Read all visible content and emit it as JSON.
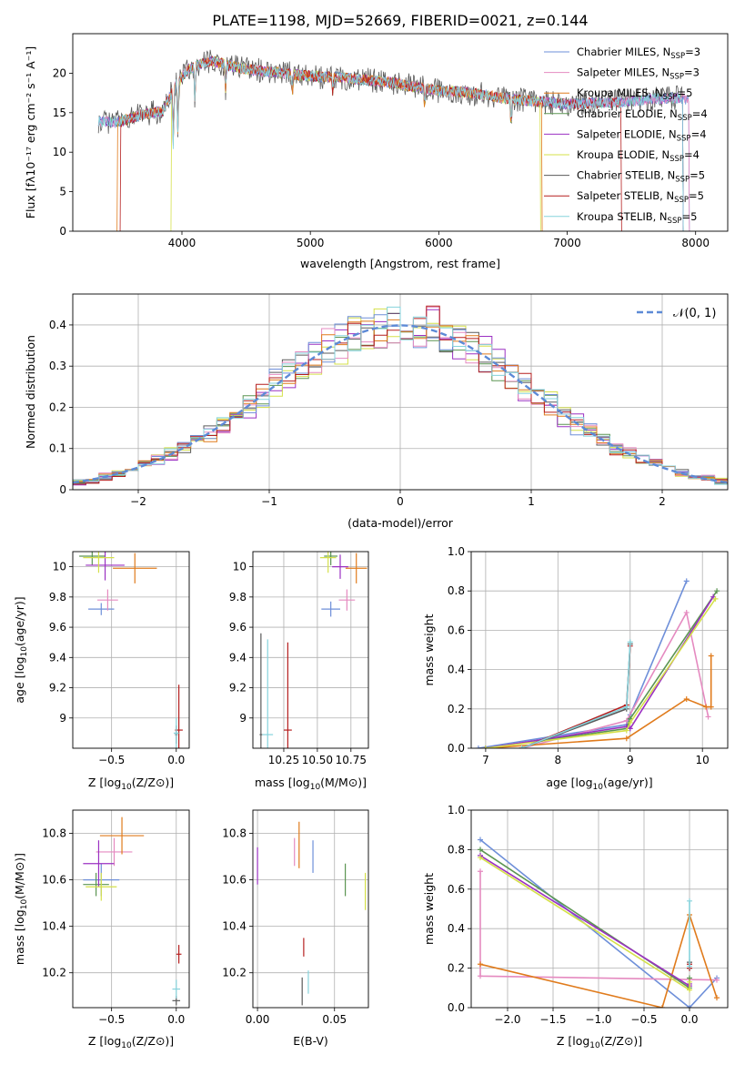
{
  "title": "PLATE=1198, MJD=52669, FIBERID=0021, z=0.144",
  "legend": {
    "entries": [
      {
        "text": "Chabrier MILES, N",
        "sub": "SSP",
        "tail": "=3",
        "color": "#6e8fd9"
      },
      {
        "text": "Salpeter MILES, N",
        "sub": "SSP",
        "tail": "=3",
        "color": "#e58ac0"
      },
      {
        "text": "Kroupa MILES, N",
        "sub": "SSP",
        "tail": "=5",
        "color": "#e07b1c"
      },
      {
        "text": "Chabrier ELODIE, N",
        "sub": "SSP",
        "tail": "=4",
        "color": "#5c9552"
      },
      {
        "text": "Salpeter ELODIE, N",
        "sub": "SSP",
        "tail": "=4",
        "color": "#9b30c2"
      },
      {
        "text": "Kroupa ELODIE, N",
        "sub": "SSP",
        "tail": "=4",
        "color": "#d5e04a"
      },
      {
        "text": "Chabrier STELIB, N",
        "sub": "SSP",
        "tail": "=5",
        "color": "#5a5a5a"
      },
      {
        "text": "Salpeter STELIB, N",
        "sub": "SSP",
        "tail": "=5",
        "color": "#b51f1f"
      },
      {
        "text": "Kroupa STELIB, N",
        "sub": "SSP",
        "tail": "=5",
        "color": "#86d3dc"
      }
    ]
  },
  "chart_data": [
    {
      "id": "spectrum",
      "type": "line",
      "xlabel": "wavelength [Angstrom, rest frame]",
      "ylabel": "Flux [fλ10⁻¹⁷ erg cm⁻² s⁻¹ A⁻¹]",
      "xlim": [
        3150,
        8250
      ],
      "ylim": [
        0,
        25
      ],
      "xticks": [
        4000,
        5000,
        6000,
        7000,
        8000
      ],
      "yticks": [
        0,
        5,
        10,
        15,
        20
      ],
      "grid": false,
      "series": [
        {
          "x": [
            3350,
            3500,
            3700,
            3850,
            3950,
            4050,
            4150,
            4250,
            4400,
            4600,
            4800,
            5000,
            5200,
            5400,
            5600,
            5800,
            6000,
            6200,
            6400,
            6600,
            6800,
            7000,
            7200,
            7400,
            7600,
            7800,
            8000
          ],
          "y": [
            14,
            13.8,
            14.8,
            15.2,
            18.5,
            20.5,
            21.2,
            21.5,
            20.8,
            20.3,
            20,
            19.6,
            19.5,
            19.2,
            18.9,
            18.3,
            17.8,
            17.6,
            17.1,
            16.6,
            16.4,
            16.1,
            16.2,
            16.3,
            16.6,
            16.9,
            16.6
          ]
        }
      ]
    },
    {
      "id": "residuals",
      "type": "bar",
      "xlabel": "(data-model)/error",
      "ylabel": "Normed distribution",
      "xlim": [
        -2.5,
        2.5
      ],
      "ylim": [
        0,
        0.475
      ],
      "xticks": [
        -2,
        -1,
        0,
        1,
        2
      ],
      "yticks": [
        0.0,
        0.1,
        0.2,
        0.3,
        0.4
      ],
      "grid": true,
      "legend_position": "top-right",
      "curve": {
        "name": "𝒩(0, 1)",
        "mu": 0,
        "sigma": 1,
        "color": "#5d8ad6"
      },
      "bin_width": 0.1,
      "bin_start": -2.5
    },
    {
      "id": "age-vs-Z",
      "type": "scatter",
      "xlabel": "Z [log10(Z/Z⊙)]",
      "ylabel": "age  [log10(age/yr)]",
      "xlim": [
        -0.8,
        0.1
      ],
      "ylim": [
        8.8,
        10.1
      ],
      "xticks": [
        -0.5,
        0.0
      ],
      "yticks": [
        9.0,
        9.2,
        9.4,
        9.6,
        9.8,
        10.0
      ],
      "grid": true,
      "points": [
        {
          "c": 0,
          "x": -0.58,
          "y": 9.72,
          "xe": 0.1,
          "ye": 0.04
        },
        {
          "c": 1,
          "x": -0.53,
          "y": 9.78,
          "xe": 0.08,
          "ye": 0.07
        },
        {
          "c": 2,
          "x": -0.32,
          "y": 9.99,
          "xe": 0.17,
          "ye": 0.1
        },
        {
          "c": 3,
          "x": -0.65,
          "y": 10.07,
          "xe": 0.1,
          "ye": 0.06
        },
        {
          "c": 4,
          "x": -0.55,
          "y": 10.01,
          "xe": 0.15,
          "ye": 0.1
        },
        {
          "c": 5,
          "x": -0.6,
          "y": 10.06,
          "xe": 0.12,
          "ye": 0.1
        },
        {
          "c": 6,
          "x": 0.0,
          "y": 8.89,
          "xe": 0.01,
          "ye": 0.06
        },
        {
          "c": 7,
          "x": 0.02,
          "y": 8.92,
          "xe": 0.03,
          "ye": 0.3
        },
        {
          "c": 8,
          "x": 0.0,
          "y": 8.9,
          "xe": 0.02,
          "ye": 0.1
        }
      ]
    },
    {
      "id": "age-vs-mass",
      "type": "scatter",
      "xlabel": "mass [log10(M/M⊙)]",
      "ylabel": "",
      "xlim": [
        10.02,
        10.88
      ],
      "ylim": [
        8.8,
        10.1
      ],
      "xticks": [
        10.25,
        10.5,
        10.75
      ],
      "yticks": [
        9.0,
        9.2,
        9.4,
        9.6,
        9.8,
        10.0
      ],
      "grid": true,
      "points": [
        {
          "c": 0,
          "x": 10.6,
          "y": 9.72,
          "xe": 0.07,
          "ye": 0.05
        },
        {
          "c": 1,
          "x": 10.72,
          "y": 9.78,
          "xe": 0.06,
          "ye": 0.07
        },
        {
          "c": 2,
          "x": 10.79,
          "y": 9.99,
          "xe": 0.08,
          "ye": 0.1
        },
        {
          "c": 3,
          "x": 10.6,
          "y": 10.07,
          "xe": 0.05,
          "ye": 0.06
        },
        {
          "c": 4,
          "x": 10.67,
          "y": 10.0,
          "xe": 0.06,
          "ye": 0.08
        },
        {
          "c": 5,
          "x": 10.58,
          "y": 10.06,
          "xe": 0.06,
          "ye": 0.1
        },
        {
          "c": 6,
          "x": 10.08,
          "y": 8.89,
          "xe": 0.01,
          "ye": 0.67
        },
        {
          "c": 7,
          "x": 10.28,
          "y": 8.92,
          "xe": 0.03,
          "ye": 0.58
        },
        {
          "c": 8,
          "x": 10.13,
          "y": 8.89,
          "xe": 0.04,
          "ye": 0.63
        }
      ]
    },
    {
      "id": "mass-weight-vs-age",
      "type": "line",
      "xlabel": "age  [log10(age/yr)]",
      "ylabel": "mass weight",
      "xlim": [
        6.8,
        10.35
      ],
      "ylim": [
        0,
        1
      ],
      "xticks": [
        7,
        8,
        9,
        10
      ],
      "yticks": [
        0.0,
        0.2,
        0.4,
        0.6,
        0.8,
        1.0
      ],
      "grid": true,
      "series": [
        {
          "c": 0,
          "x": [
            6.9,
            8.95,
            9.0,
            9.78
          ],
          "y": [
            0.0,
            0.12,
            0.17,
            0.85
          ]
        },
        {
          "c": 1,
          "x": [
            7.5,
            8.95,
            9.78,
            10.08
          ],
          "y": [
            0.0,
            0.14,
            0.69,
            0.16
          ]
        },
        {
          "c": 2,
          "x": [
            7.0,
            8.95,
            9.78,
            10.05,
            10.12,
            10.12
          ],
          "y": [
            0.0,
            0.05,
            0.25,
            0.21,
            0.21,
            0.47
          ]
        },
        {
          "c": 3,
          "x": [
            7.0,
            8.95,
            9.0,
            10.2
          ],
          "y": [
            0.0,
            0.1,
            0.15,
            0.8
          ]
        },
        {
          "c": 4,
          "x": [
            7.0,
            8.95,
            9.0,
            10.15
          ],
          "y": [
            0.0,
            0.11,
            0.1,
            0.77
          ]
        },
        {
          "c": 5,
          "x": [
            7.0,
            8.95,
            9.0,
            10.18
          ],
          "y": [
            0.0,
            0.09,
            0.13,
            0.76
          ]
        },
        {
          "c": 6,
          "x": [
            7.5,
            8.95,
            9.0
          ],
          "y": [
            0.0,
            0.2,
            0.53
          ]
        },
        {
          "c": 7,
          "x": [
            7.5,
            8.95,
            9.0
          ],
          "y": [
            0.0,
            0.22,
            0.52
          ]
        },
        {
          "c": 8,
          "x": [
            7.5,
            8.95,
            9.0
          ],
          "y": [
            0.0,
            0.21,
            0.54
          ]
        }
      ]
    },
    {
      "id": "mass-vs-Z",
      "type": "scatter",
      "xlabel": "Z [log10(Z/Z⊙)]",
      "ylabel": "mass [log10(M/M⊙)]",
      "xlim": [
        -0.8,
        0.1
      ],
      "ylim": [
        10.05,
        10.9
      ],
      "xticks": [
        -0.5,
        0.0
      ],
      "yticks": [
        10.2,
        10.4,
        10.6,
        10.8
      ],
      "grid": true,
      "points": [
        {
          "c": 0,
          "x": -0.58,
          "y": 10.6,
          "xe": 0.14,
          "ye": 0.07
        },
        {
          "c": 1,
          "x": -0.48,
          "y": 10.72,
          "xe": 0.14,
          "ye": 0.06
        },
        {
          "c": 2,
          "x": -0.42,
          "y": 10.79,
          "xe": 0.17,
          "ye": 0.08
        },
        {
          "c": 3,
          "x": -0.62,
          "y": 10.58,
          "xe": 0.1,
          "ye": 0.05
        },
        {
          "c": 4,
          "x": -0.6,
          "y": 10.67,
          "xe": 0.12,
          "ye": 0.1
        },
        {
          "c": 5,
          "x": -0.58,
          "y": 10.57,
          "xe": 0.12,
          "ye": 0.06
        },
        {
          "c": 6,
          "x": 0.0,
          "y": 10.08,
          "xe": 0.03,
          "ye": 0.02
        },
        {
          "c": 7,
          "x": 0.02,
          "y": 10.28,
          "xe": 0.02,
          "ye": 0.04
        },
        {
          "c": 8,
          "x": 0.0,
          "y": 10.13,
          "xe": 0.03,
          "ye": 0.04
        }
      ]
    },
    {
      "id": "mass-vs-EBV",
      "type": "scatter",
      "xlabel": "E(B-V)",
      "ylabel": "",
      "xlim": [
        -0.003,
        0.072
      ],
      "ylim": [
        10.05,
        10.9
      ],
      "xticks": [
        0.0,
        0.05
      ],
      "yticks": [
        10.2,
        10.4,
        10.6,
        10.8
      ],
      "grid": true,
      "points": [
        {
          "c": 0,
          "x": 0.036,
          "y": 10.7,
          "xe": 0,
          "ye": 0.07
        },
        {
          "c": 1,
          "x": 0.024,
          "y": 10.72,
          "xe": 0,
          "ye": 0.06
        },
        {
          "c": 2,
          "x": 0.027,
          "y": 10.75,
          "xe": 0,
          "ye": 0.1
        },
        {
          "c": 3,
          "x": 0.057,
          "y": 10.6,
          "xe": 0,
          "ye": 0.07
        },
        {
          "c": 4,
          "x": 0.0,
          "y": 10.66,
          "xe": 0,
          "ye": 0.08
        },
        {
          "c": 5,
          "x": 0.07,
          "y": 10.55,
          "xe": 0,
          "ye": 0.08
        },
        {
          "c": 6,
          "x": 0.029,
          "y": 10.12,
          "xe": 0,
          "ye": 0.06
        },
        {
          "c": 7,
          "x": 0.03,
          "y": 10.31,
          "xe": 0,
          "ye": 0.04
        },
        {
          "c": 8,
          "x": 0.033,
          "y": 10.16,
          "xe": 0,
          "ye": 0.05
        }
      ]
    },
    {
      "id": "mass-weight-vs-Z",
      "type": "line",
      "xlabel": "Z [log10(Z/Z⊙)]",
      "ylabel": "mass weight",
      "xlim": [
        -2.4,
        0.42
      ],
      "ylim": [
        0,
        1
      ],
      "xticks": [
        -2.0,
        -1.5,
        -1.0,
        -0.5,
        0.0
      ],
      "yticks": [
        0.0,
        0.2,
        0.4,
        0.6,
        0.8,
        1.0
      ],
      "grid": true,
      "series": [
        {
          "c": 0,
          "x": [
            -2.3,
            0.0,
            0.3
          ],
          "y": [
            0.85,
            0.0,
            0.15
          ]
        },
        {
          "c": 1,
          "x": [
            -2.3,
            -2.3,
            0.3
          ],
          "y": [
            0.69,
            0.16,
            0.14
          ]
        },
        {
          "c": 2,
          "x": [
            -2.3,
            -0.3,
            0.0,
            0.3
          ],
          "y": [
            0.22,
            0.0,
            0.47,
            0.05
          ]
        },
        {
          "c": 3,
          "x": [
            -2.3,
            0.0,
            0.0
          ],
          "y": [
            0.8,
            0.1,
            0.15
          ]
        },
        {
          "c": 4,
          "x": [
            -2.3,
            0.0,
            0.0
          ],
          "y": [
            0.77,
            0.11,
            0.12
          ]
        },
        {
          "c": 5,
          "x": [
            -2.3,
            0.0,
            0.0
          ],
          "y": [
            0.76,
            0.09,
            0.13
          ]
        },
        {
          "c": 6,
          "x": [
            0.0,
            0.0
          ],
          "y": [
            0.2,
            0.23
          ]
        },
        {
          "c": 7,
          "x": [
            0.0,
            0.0
          ],
          "y": [
            0.22,
            0.2
          ]
        },
        {
          "c": 8,
          "x": [
            0.0,
            0.0
          ],
          "y": [
            0.21,
            0.54
          ]
        }
      ]
    }
  ]
}
